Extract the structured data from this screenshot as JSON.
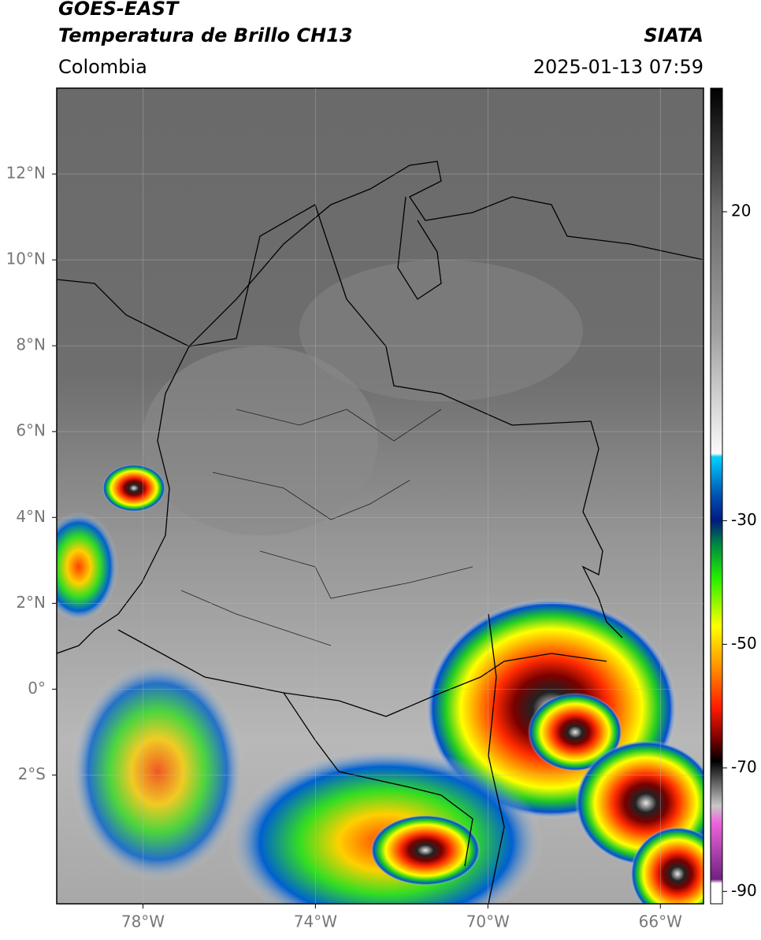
{
  "header": {
    "satellite": "GOES-EAST",
    "product": "Temperatura de Brillo CH13",
    "agency": "SIATA",
    "region": "Colombia",
    "datetime": "2025-01-13 07:59"
  },
  "map": {
    "xlim": [
      -80,
      -65
    ],
    "ylim": [
      -5,
      14
    ],
    "xticks": [
      {
        "value": -78,
        "label": "78°W"
      },
      {
        "value": -74,
        "label": "74°W"
      },
      {
        "value": -70,
        "label": "70°W"
      },
      {
        "value": -66,
        "label": "66°W"
      }
    ],
    "yticks": [
      {
        "value": 12,
        "label": "12°N"
      },
      {
        "value": 10,
        "label": "10°N"
      },
      {
        "value": 8,
        "label": "8°N"
      },
      {
        "value": 6,
        "label": "6°N"
      },
      {
        "value": 4,
        "label": "4°N"
      },
      {
        "value": 2,
        "label": "2°N"
      },
      {
        "value": 0,
        "label": "0°"
      },
      {
        "value": -2,
        "label": "2°S"
      }
    ]
  },
  "colorbar": {
    "lim": [
      -92,
      40
    ],
    "ticks": [
      20,
      -30,
      -50,
      -70,
      -90
    ]
  }
}
